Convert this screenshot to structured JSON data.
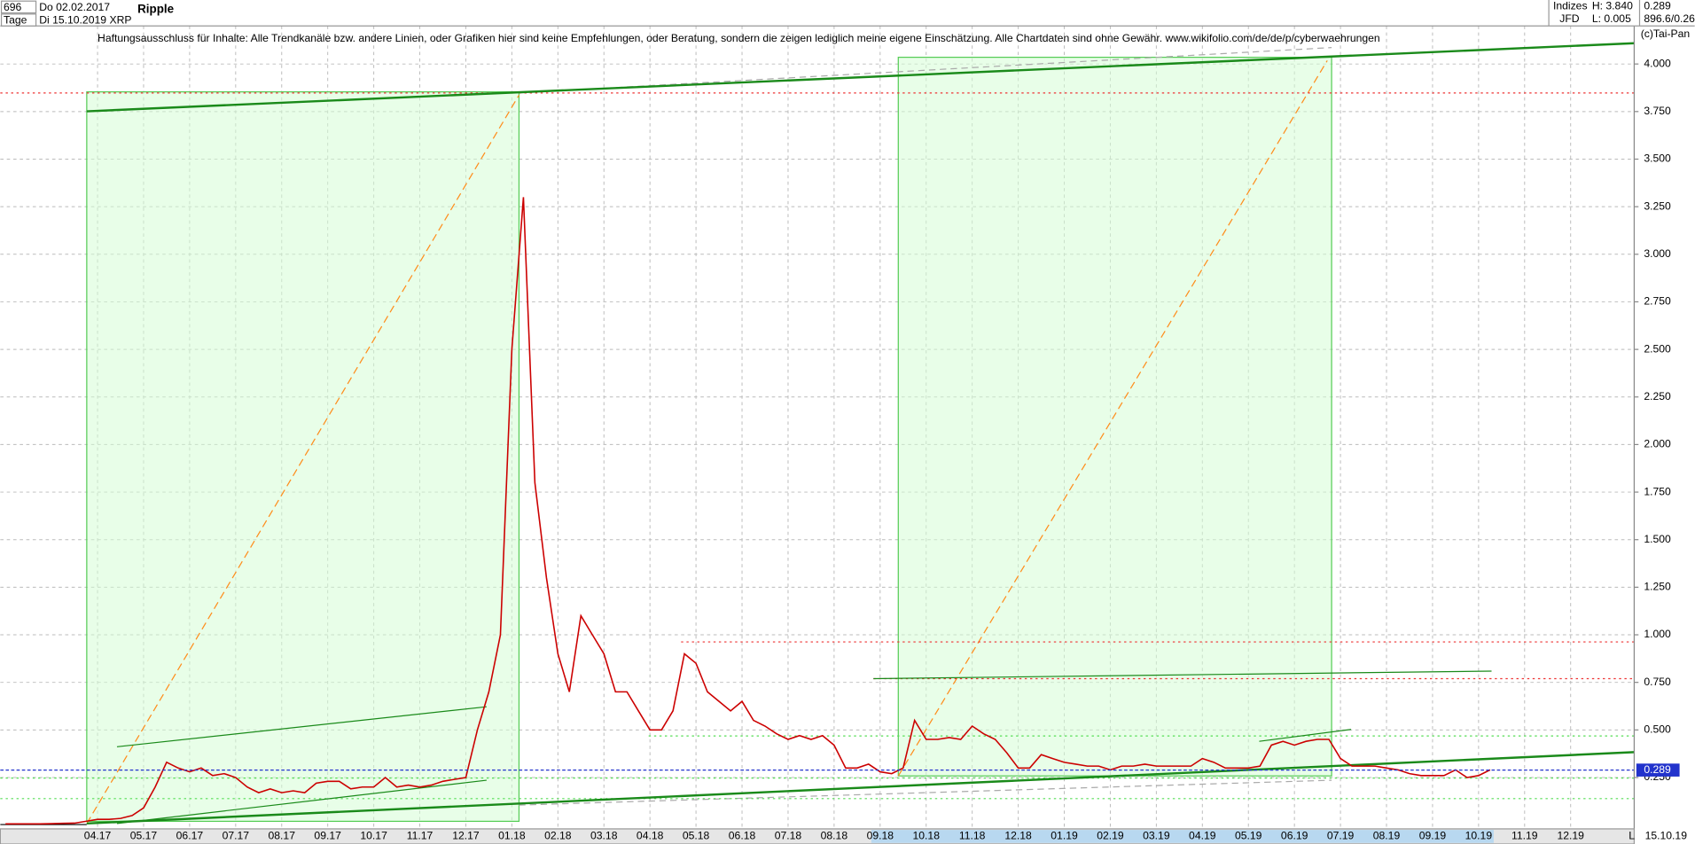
{
  "header": {
    "count": "696",
    "start_date": "Do 02.02.2017",
    "period": "Tage",
    "end_date": "Di 15.10.2019",
    "symbol": "XRP",
    "name": "Ripple",
    "group": "Indizes",
    "source": "JFD",
    "high": "H: 3.840",
    "low": "L: 0.005",
    "last": "0.289",
    "info": "896.6/0.26",
    "disclaimer": "Haftungsausschluss für Inhalte: Alle Trendkanäle bzw. andere Linien, oder Grafiken hier sind keine Empfehlungen, oder Beratung, sondern die zeigen lediglich meine eigene Einschätzung. Alle Chartdaten sind ohne Gewähr.  www.wikifolio.com/de/de/p/cyberwaehrungen",
    "copyright": "(c)Tai-Pan",
    "footer_date": "15.10.19",
    "footer_mode": "L"
  },
  "chart_data": {
    "type": "line",
    "grid": true,
    "categories": [
      null,
      null,
      null,
      null,
      null,
      null,
      null,
      null,
      "04.17",
      null,
      null,
      null,
      "05.17",
      null,
      null,
      null,
      "06.17",
      null,
      null,
      null,
      "07.17",
      null,
      null,
      null,
      "08.17",
      null,
      null,
      null,
      "09.17",
      null,
      null,
      null,
      "10.17",
      null,
      null,
      null,
      "11.17",
      null,
      null,
      null,
      "12.17",
      null,
      null,
      null,
      "01.18",
      null,
      null,
      null,
      "02.18",
      null,
      null,
      null,
      "03.18",
      null,
      null,
      null,
      "04.18",
      null,
      null,
      null,
      "05.18",
      null,
      null,
      null,
      "06.18",
      null,
      null,
      null,
      "07.18",
      null,
      null,
      null,
      "08.18",
      null,
      null,
      null,
      "09.18",
      null,
      null,
      null,
      "10.18",
      null,
      null,
      null,
      "11.18",
      null,
      null,
      null,
      "12.18",
      null,
      null,
      null,
      "01.19",
      null,
      null,
      null,
      "02.19",
      null,
      null,
      null,
      "03.19",
      null,
      null,
      null,
      "04.19",
      null,
      null,
      null,
      "05.19",
      null,
      null,
      null,
      "06.19",
      null,
      null,
      null,
      "07.19",
      null,
      null,
      null,
      "08.19",
      null,
      null,
      null,
      "09.19",
      null,
      null,
      null,
      "10.19",
      null,
      null,
      null,
      "11.19",
      null,
      null,
      null,
      "12.19",
      null,
      null,
      null,
      null,
      null,
      null,
      null
    ],
    "series": [
      {
        "color": "#cc0000",
        "values": [
          0.006,
          0.006,
          0.006,
          0.006,
          0.007,
          0.009,
          0.01,
          0.02,
          0.03,
          0.03,
          0.035,
          0.05,
          0.09,
          0.2,
          0.33,
          0.3,
          0.28,
          0.3,
          0.26,
          0.27,
          0.25,
          0.2,
          0.17,
          0.19,
          0.17,
          0.18,
          0.17,
          0.22,
          0.23,
          0.23,
          0.19,
          0.2,
          0.2,
          0.25,
          0.2,
          0.21,
          0.2,
          0.21,
          0.23,
          0.24,
          0.25,
          0.5,
          0.7,
          1.0,
          2.5,
          3.3,
          1.8,
          1.3,
          0.9,
          0.7,
          1.1,
          1.0,
          0.9,
          0.7,
          0.7,
          0.6,
          0.5,
          0.5,
          0.6,
          0.9,
          0.85,
          0.7,
          0.65,
          0.6,
          0.65,
          0.55,
          0.52,
          0.48,
          0.45,
          0.47,
          0.45,
          0.47,
          0.42,
          0.3,
          0.3,
          0.32,
          0.28,
          0.27,
          0.3,
          0.55,
          0.45,
          0.45,
          0.46,
          0.45,
          0.52,
          0.48,
          0.45,
          0.38,
          0.3,
          0.3,
          0.37,
          0.35,
          0.33,
          0.32,
          0.31,
          0.31,
          0.29,
          0.31,
          0.31,
          0.32,
          0.31,
          0.31,
          0.31,
          0.31,
          0.35,
          0.33,
          0.3,
          0.3,
          0.3,
          0.31,
          0.42,
          0.44,
          0.42,
          0.44,
          0.45,
          0.45,
          0.35,
          0.31,
          0.31,
          0.31,
          0.3,
          0.29,
          0.27,
          0.26,
          0.26,
          0.26,
          0.29,
          0.25,
          0.26,
          0.29,
          null,
          null,
          null,
          null,
          null,
          null,
          null,
          null,
          null,
          null,
          null,
          null,
          null,
          null
        ]
      }
    ],
    "last_value": {
      "value": 0.289,
      "label": "0.289"
    },
    "ylim": [
      -0.02,
      4.2
    ],
    "yticks": [
      {
        "value": 0.25,
        "label": "0.250"
      },
      {
        "value": 0.5,
        "label": "0.500"
      },
      {
        "value": 0.75,
        "label": "0.750"
      },
      {
        "value": 1,
        "label": "1.000"
      },
      {
        "value": 1.25,
        "label": "1.250"
      },
      {
        "value": 1.5,
        "label": "1.500"
      },
      {
        "value": 1.75,
        "label": "1.750"
      },
      {
        "value": 2,
        "label": "2.000"
      },
      {
        "value": 2.25,
        "label": "2.250"
      },
      {
        "value": 2.5,
        "label": "2.500"
      },
      {
        "value": 2.75,
        "label": "2.750"
      },
      {
        "value": 3,
        "label": "3.000"
      },
      {
        "value": 3.25,
        "label": "3.250"
      },
      {
        "value": 3.5,
        "label": "3.500"
      },
      {
        "value": 3.75,
        "label": "3.750"
      },
      {
        "value": 4,
        "label": "4.000"
      }
    ]
  }
}
